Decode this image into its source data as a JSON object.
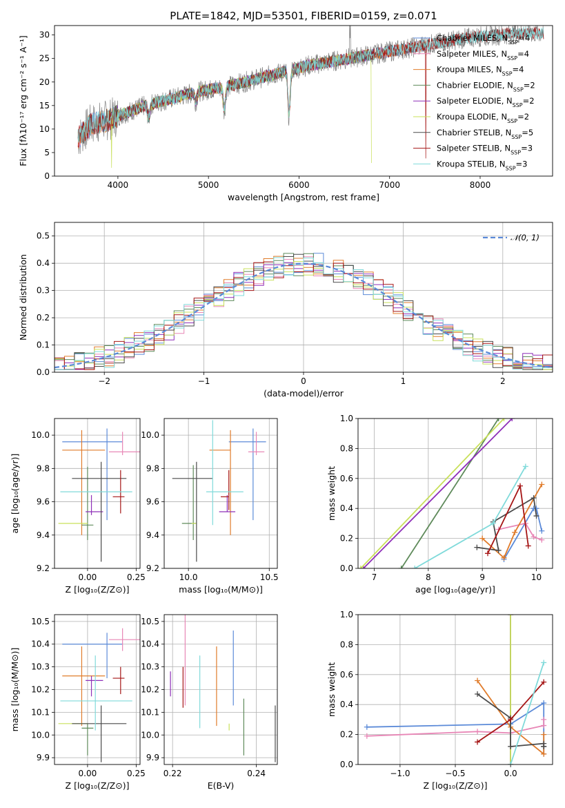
{
  "colors": {
    "Chabrier MILES": "#5b8ad8",
    "Salpeter MILES": "#e886b6",
    "Kroupa MILES": "#e07b2a",
    "Chabrier ELODIE": "#5e8a5a",
    "Salpeter ELODIE": "#8e2fb8",
    "Kroupa ELODIE": "#c8e05a",
    "Chabrier STELIB": "#4a4a4a",
    "Salpeter STELIB": "#a51515",
    "Kroupa STELIB": "#7fdada",
    "data": "#808080",
    "normal": "#5b8ad8",
    "grid": "#b0b0b0"
  },
  "chart_data": [
    {
      "id": "spectrum",
      "type": "line",
      "title": "PLATE=1842, MJD=53501, FIBERID=0159, z=0.071",
      "xlabel": "wavelength [Angstrom, rest frame]",
      "ylabel": "Flux [f_λ 10^-17 erg cm^-2 s^-1 A^-1]",
      "xlim": [
        3300,
        8800
      ],
      "ylim": [
        0,
        32
      ],
      "xticks": [
        4000,
        5000,
        6000,
        7000,
        8000
      ],
      "yticks": [
        0,
        5,
        10,
        15,
        20,
        25,
        30
      ],
      "grid": false,
      "legend": "upper right",
      "continuum": [
        [
          3560,
          8
        ],
        [
          3700,
          11
        ],
        [
          3900,
          12
        ],
        [
          4100,
          13.5
        ],
        [
          4300,
          15
        ],
        [
          4600,
          16.5
        ],
        [
          4900,
          18
        ],
        [
          5200,
          19
        ],
        [
          5500,
          20.5
        ],
        [
          5800,
          22
        ],
        [
          6100,
          23.5
        ],
        [
          6400,
          24.5
        ],
        [
          6700,
          25.5
        ],
        [
          7000,
          26.5
        ],
        [
          7300,
          27.5
        ],
        [
          7600,
          28.5
        ],
        [
          7900,
          29.5
        ],
        [
          8200,
          30
        ],
        [
          8500,
          30.5
        ],
        [
          8780,
          30.3
        ]
      ],
      "features": [
        {
          "x": 3930,
          "depth": 13,
          "series": "Kroupa ELODIE"
        },
        {
          "x": 4340,
          "depth": 3
        },
        {
          "x": 4861,
          "depth": 2
        },
        {
          "x": 5175,
          "depth": 5
        },
        {
          "x": 5890,
          "depth": 10
        },
        {
          "x": 6800,
          "depth": 26,
          "series": "Kroupa ELODIE"
        },
        {
          "x": 7400,
          "depth": 28,
          "series": "Salpeter STELIB"
        }
      ],
      "series": [
        {
          "name": "Chabrier MILES",
          "nssp": "4",
          "x_range": [
            3560,
            7400
          ]
        },
        {
          "name": "Salpeter MILES",
          "nssp": "4",
          "x_range": [
            3560,
            7400
          ]
        },
        {
          "name": "Kroupa MILES",
          "nssp": "4",
          "x_range": [
            3560,
            7400
          ]
        },
        {
          "name": "Chabrier ELODIE",
          "nssp": "2",
          "x_range": [
            3900,
            6800
          ]
        },
        {
          "name": "Salpeter ELODIE",
          "nssp": "2",
          "x_range": [
            3900,
            6800
          ]
        },
        {
          "name": "Kroupa ELODIE",
          "nssp": "2",
          "x_range": [
            3900,
            6800
          ]
        },
        {
          "name": "Chabrier STELIB",
          "nssp": "5",
          "x_range": [
            3560,
            8700
          ]
        },
        {
          "name": "Salpeter STELIB",
          "nssp": "3",
          "x_range": [
            3560,
            8700
          ]
        },
        {
          "name": "Kroupa STELIB",
          "nssp": "3",
          "x_range": [
            3560,
            8700
          ]
        }
      ]
    },
    {
      "id": "residuals",
      "type": "histogram",
      "xlabel": "(data-model)/error",
      "ylabel": "Normed distribution",
      "xlim": [
        -2.5,
        2.5
      ],
      "ylim": [
        0,
        0.55
      ],
      "xticks": [
        -2,
        -1,
        0,
        1,
        2
      ],
      "yticks": [
        0.0,
        0.1,
        0.2,
        0.3,
        0.4,
        0.5
      ],
      "grid": true,
      "legend": "upper right",
      "legend_label": "N(0,1)",
      "bin_width": 0.1
    },
    {
      "id": "age-Z",
      "type": "errorbar",
      "xlabel": "Z [log10(Z/Z☉)]",
      "ylabel": "age  [log10(age/yr)]",
      "xlim": [
        -0.17,
        0.27
      ],
      "ylim": [
        9.2,
        10.1
      ],
      "xticks": [
        0.0,
        0.25
      ],
      "yticks": [
        9.2,
        9.4,
        9.6,
        9.8,
        10.0
      ],
      "grid": true,
      "points": [
        {
          "series": "Chabrier MILES",
          "x": 0.1,
          "xerr": [
            0.23,
            0.08
          ],
          "y": 9.96,
          "yerr": [
            0.47,
            0.08
          ]
        },
        {
          "series": "Salpeter MILES",
          "x": 0.18,
          "xerr": [
            0.07,
            0.09
          ],
          "y": 9.9,
          "yerr": [
            0.02,
            0.12
          ]
        },
        {
          "series": "Kroupa MILES",
          "x": -0.03,
          "xerr": [
            0.1,
            0.12
          ],
          "y": 9.91,
          "yerr": [
            0.51,
            0.12
          ]
        },
        {
          "series": "Chabrier ELODIE",
          "x": 0.0,
          "xerr": [
            0.03,
            0.03
          ],
          "y": 9.46,
          "yerr": [
            0.09,
            0.35
          ]
        },
        {
          "series": "Salpeter ELODIE",
          "x": 0.02,
          "xerr": [
            0.03,
            0.06
          ],
          "y": 9.54,
          "yerr": [
            0.02,
            0.1
          ]
        },
        {
          "series": "Kroupa ELODIE",
          "x": -0.05,
          "xerr": [
            0.1,
            0.05
          ],
          "y": 9.47,
          "yerr": [
            0.0,
            0.0
          ]
        },
        {
          "series": "Chabrier STELIB",
          "x": 0.07,
          "xerr": [
            0.15,
            0.13
          ],
          "y": 9.74,
          "yerr": [
            0.5,
            0.1
          ]
        },
        {
          "series": "Salpeter STELIB",
          "x": 0.17,
          "xerr": [
            0.04,
            0.02
          ],
          "y": 9.63,
          "yerr": [
            0.1,
            0.16
          ]
        },
        {
          "series": "Kroupa STELIB",
          "x": 0.04,
          "xerr": [
            0.18,
            0.19
          ],
          "y": 9.66,
          "yerr": [
            0.0,
            0.0
          ]
        }
      ]
    },
    {
      "id": "age-mass",
      "type": "errorbar",
      "xlabel": "mass [log10(M/M☉)]",
      "ylabel": "",
      "xlim": [
        9.85,
        10.55
      ],
      "ylim": [
        9.2,
        10.1
      ],
      "xticks": [
        10.0,
        10.5
      ],
      "yticks": [
        9.2,
        9.4,
        9.6,
        9.8,
        10.0
      ],
      "grid": true,
      "points": [
        {
          "series": "Chabrier MILES",
          "x": 10.4,
          "xerr": [
            0.15,
            0.08
          ],
          "y": 9.96,
          "yerr": [
            0.47,
            0.08
          ]
        },
        {
          "series": "Salpeter MILES",
          "x": 10.42,
          "xerr": [
            0.05,
            0.05
          ],
          "y": 9.9,
          "yerr": [
            0.02,
            0.12
          ]
        },
        {
          "series": "Kroupa MILES",
          "x": 10.26,
          "xerr": [
            0.13,
            0.0
          ],
          "y": 9.91,
          "yerr": [
            0.51,
            0.12
          ]
        },
        {
          "series": "Chabrier ELODIE",
          "x": 10.03,
          "xerr": [
            0.07,
            0.02
          ],
          "y": 9.47,
          "yerr": [
            0.1,
            0.35
          ]
        },
        {
          "series": "Salpeter ELODIE",
          "x": 10.24,
          "xerr": [
            0.05,
            0.05
          ],
          "y": 9.54,
          "yerr": [
            0.0,
            0.1
          ]
        },
        {
          "series": "Kroupa ELODIE",
          "x": 10.05,
          "xerr": [
            0.03,
            0.0
          ],
          "y": 9.47,
          "yerr": [
            0.0,
            0.0
          ]
        },
        {
          "series": "Chabrier STELIB",
          "x": 10.05,
          "xerr": [
            0.15,
            0.1
          ],
          "y": 9.74,
          "yerr": [
            0.5,
            0.1
          ]
        },
        {
          "series": "Salpeter STELIB",
          "x": 10.25,
          "xerr": [
            0.05,
            0.0
          ],
          "y": 9.63,
          "yerr": [
            0.08,
            0.16
          ]
        },
        {
          "series": "Kroupa STELIB",
          "x": 10.15,
          "xerr": [
            0.04,
            0.19
          ],
          "y": 9.66,
          "yerr": [
            0.2,
            0.43
          ]
        }
      ]
    },
    {
      "id": "weight-age",
      "type": "line",
      "xlabel": "age  [log10(age/yr)]",
      "ylabel": "mass weight",
      "xlim": [
        6.7,
        10.3
      ],
      "ylim": [
        0,
        1
      ],
      "xticks": [
        7,
        8,
        9,
        10
      ],
      "yticks": [
        0.0,
        0.2,
        0.4,
        0.6,
        0.8,
        1.0
      ],
      "grid": true,
      "series": [
        {
          "name": "Chabrier MILES",
          "x": [
            9.4,
            9.95,
            10.0,
            10.1
          ],
          "y": [
            0.06,
            0.4,
            0.4,
            0.25
          ]
        },
        {
          "name": "Salpeter MILES",
          "x": [
            9.3,
            9.8,
            9.95,
            10.1
          ],
          "y": [
            0.26,
            0.3,
            0.21,
            0.19
          ]
        },
        {
          "name": "Kroupa MILES",
          "x": [
            9.0,
            9.4,
            9.6,
            10.1
          ],
          "y": [
            0.2,
            0.07,
            0.24,
            0.56
          ]
        },
        {
          "name": "Chabrier ELODIE",
          "x": [
            7.5,
            9.3
          ],
          "y": [
            0.0,
            1.0
          ]
        },
        {
          "name": "Salpeter ELODIE",
          "x": [
            6.8,
            9.55
          ],
          "y": [
            0.0,
            1.0
          ]
        },
        {
          "name": "Kroupa ELODIE",
          "x": [
            6.75,
            9.4
          ],
          "y": [
            0.0,
            1.0
          ]
        },
        {
          "name": "Chabrier STELIB",
          "x": [
            8.9,
            9.3,
            9.2,
            9.95,
            10.0
          ],
          "y": [
            0.14,
            0.12,
            0.31,
            0.47,
            0.35
          ]
        },
        {
          "name": "Salpeter STELIB",
          "x": [
            9.1,
            9.7,
            9.85
          ],
          "y": [
            0.1,
            0.55,
            0.15
          ]
        },
        {
          "name": "Kroupa STELIB",
          "x": [
            7.75,
            9.2,
            9.8
          ],
          "y": [
            0.0,
            0.3,
            0.68
          ]
        }
      ]
    },
    {
      "id": "mass-Z",
      "type": "errorbar",
      "xlabel": "Z [log10(Z/Z☉)]",
      "ylabel": "mass [log10(M/M☉)]",
      "xlim": [
        -0.17,
        0.27
      ],
      "ylim": [
        9.87,
        10.53
      ],
      "xticks": [
        0.0,
        0.25
      ],
      "yticks": [
        9.9,
        10.0,
        10.1,
        10.2,
        10.3,
        10.4,
        10.5
      ],
      "grid": true,
      "points": [
        {
          "series": "Chabrier MILES",
          "x": 0.1,
          "xerr": [
            0.23,
            0.08
          ],
          "y": 10.4,
          "yerr": [
            0.15,
            0.05
          ]
        },
        {
          "series": "Salpeter MILES",
          "x": 0.18,
          "xerr": [
            0.07,
            0.09
          ],
          "y": 10.42,
          "yerr": [
            0.05,
            0.05
          ]
        },
        {
          "series": "Kroupa MILES",
          "x": -0.03,
          "xerr": [
            0.1,
            0.12
          ],
          "y": 10.26,
          "yerr": [
            0.22,
            0.13
          ]
        },
        {
          "series": "Chabrier ELODIE",
          "x": 0.0,
          "xerr": [
            0.03,
            0.03
          ],
          "y": 10.03,
          "yerr": [
            0.12,
            0.02
          ]
        },
        {
          "series": "Salpeter ELODIE",
          "x": 0.02,
          "xerr": [
            0.03,
            0.06
          ],
          "y": 10.24,
          "yerr": [
            0.07,
            0.02
          ]
        },
        {
          "series": "Kroupa ELODIE",
          "x": -0.05,
          "xerr": [
            0.1,
            0.05
          ],
          "y": 10.05,
          "yerr": [
            0.0,
            0.0
          ]
        },
        {
          "series": "Chabrier STELIB",
          "x": 0.07,
          "xerr": [
            0.15,
            0.13
          ],
          "y": 10.05,
          "yerr": [
            0.17,
            0.08
          ]
        },
        {
          "series": "Salpeter STELIB",
          "x": 0.17,
          "xerr": [
            0.04,
            0.02
          ],
          "y": 10.25,
          "yerr": [
            0.07,
            0.05
          ]
        },
        {
          "series": "Kroupa STELIB",
          "x": 0.04,
          "xerr": [
            0.18,
            0.19
          ],
          "y": 10.15,
          "yerr": [
            0.13,
            0.2
          ]
        }
      ]
    },
    {
      "id": "mass-EBV",
      "type": "errorbar",
      "xlabel": "E(B-V)",
      "ylabel": "",
      "xlim": [
        0.218,
        0.245
      ],
      "ylim": [
        9.87,
        10.53
      ],
      "xticks": [
        0.22,
        0.24
      ],
      "yticks": [
        9.9,
        10.0,
        10.1,
        10.2,
        10.3,
        10.4,
        10.5
      ],
      "grid": true,
      "points": [
        {
          "series": "Chabrier MILES",
          "x": 0.2345,
          "y": 10.29,
          "yerr": [
            0.16,
            0.17
          ]
        },
        {
          "series": "Salpeter MILES",
          "x": 0.223,
          "y": 10.36,
          "yerr": [
            0.23,
            0.18
          ]
        },
        {
          "series": "Kroupa MILES",
          "x": 0.2305,
          "y": 10.21,
          "yerr": [
            0.17,
            0.18
          ]
        },
        {
          "series": "Chabrier ELODIE",
          "x": 0.237,
          "y": 10.03,
          "yerr": [
            0.12,
            0.13
          ]
        },
        {
          "series": "Salpeter ELODIE",
          "x": 0.2195,
          "y": 10.23,
          "yerr": [
            0.06,
            0.05
          ]
        },
        {
          "series": "Kroupa ELODIE",
          "x": 0.2335,
          "y": 10.05,
          "yerr": [
            0.03,
            0.0
          ]
        },
        {
          "series": "Chabrier STELIB",
          "x": 0.2445,
          "y": 10.0,
          "yerr": [
            0.12,
            0.13
          ]
        },
        {
          "series": "Salpeter STELIB",
          "x": 0.2225,
          "y": 10.25,
          "yerr": [
            0.13,
            0.05
          ]
        },
        {
          "series": "Kroupa STELIB",
          "x": 0.2265,
          "y": 10.2,
          "yerr": [
            0.17,
            0.15
          ]
        }
      ]
    },
    {
      "id": "weight-Z",
      "type": "line",
      "xlabel": "Z [log10(Z/Z☉)]",
      "ylabel": "mass weight",
      "xlim": [
        -1.38,
        0.38
      ],
      "ylim": [
        0,
        1
      ],
      "xticks": [
        -1.0,
        -0.5,
        0.0
      ],
      "yticks": [
        0.0,
        0.2,
        0.4,
        0.6,
        0.8,
        1.0
      ],
      "grid": true,
      "series": [
        {
          "name": "Chabrier MILES",
          "x": [
            -1.3,
            0.0,
            0.3,
            0.3
          ],
          "y": [
            0.25,
            0.27,
            0.41,
            0.07
          ]
        },
        {
          "name": "Salpeter MILES",
          "x": [
            -1.3,
            -0.3,
            0.0,
            0.3,
            0.3
          ],
          "y": [
            0.19,
            0.22,
            0.21,
            0.26,
            0.3
          ]
        },
        {
          "name": "Kroupa MILES",
          "x": [
            -0.3,
            0.0,
            0.3,
            0.3
          ],
          "y": [
            0.56,
            0.25,
            0.07,
            0.2
          ]
        },
        {
          "name": "Chabrier ELODIE",
          "x": [
            0.0,
            0.0
          ],
          "y": [
            0.0,
            1.0
          ]
        },
        {
          "name": "Salpeter ELODIE",
          "x": [
            0.0,
            0.0
          ],
          "y": [
            0.0,
            1.0
          ]
        },
        {
          "name": "Kroupa ELODIE",
          "x": [
            0.0,
            0.0
          ],
          "y": [
            0.0,
            1.0
          ]
        },
        {
          "name": "Chabrier STELIB",
          "x": [
            -0.3,
            0.0,
            0.0,
            0.3,
            0.3,
            0.3
          ],
          "y": [
            0.47,
            0.31,
            0.12,
            0.14,
            0.12,
            0.12
          ]
        },
        {
          "name": "Salpeter STELIB",
          "x": [
            -0.3,
            0.0,
            0.3
          ],
          "y": [
            0.15,
            0.3,
            0.55
          ]
        },
        {
          "name": "Kroupa STELIB",
          "x": [
            0.0,
            0.3
          ],
          "y": [
            0.0,
            0.68
          ]
        }
      ]
    }
  ]
}
